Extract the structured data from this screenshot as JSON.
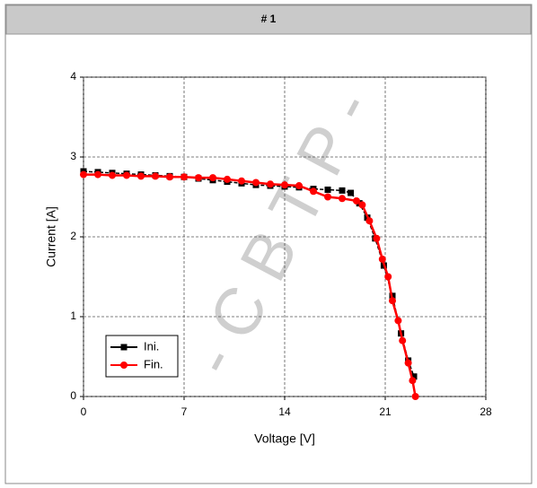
{
  "chart_data": {
    "type": "line",
    "title": "# 1",
    "watermark": "- C B T P -",
    "x_label": "Voltage [V]",
    "y_label": "Current [A]",
    "xlim": [
      0,
      28
    ],
    "xticks": [
      0,
      7,
      14,
      21,
      28
    ],
    "ylim": [
      0,
      4
    ],
    "yticks": [
      0,
      1,
      2,
      3,
      4
    ],
    "grid": true,
    "legend": "lower left",
    "series": [
      {
        "name": "Ini.",
        "color": "#000000",
        "marker": "square",
        "x": [
          0,
          1,
          2,
          3,
          4,
          5,
          6,
          7,
          8,
          9,
          10,
          11,
          12,
          13,
          14,
          15,
          16,
          17,
          18,
          18.6,
          19.2,
          19.75,
          20.3,
          20.9,
          21.5,
          22.1,
          22.6,
          23.0
        ],
        "values": [
          2.82,
          2.81,
          2.8,
          2.79,
          2.78,
          2.77,
          2.76,
          2.75,
          2.73,
          2.71,
          2.69,
          2.67,
          2.65,
          2.64,
          2.63,
          2.62,
          2.6,
          2.59,
          2.58,
          2.55,
          2.42,
          2.24,
          1.98,
          1.64,
          1.26,
          0.79,
          0.45,
          0.25
        ]
      },
      {
        "name": "Fin.",
        "color": "#ff0000",
        "marker": "circle",
        "x": [
          0,
          1,
          2,
          3,
          4,
          5,
          6,
          7,
          8,
          9,
          10,
          11,
          12,
          13,
          14,
          15,
          16,
          17,
          18,
          19,
          19.4,
          19.9,
          20.4,
          20.8,
          21.2,
          21.5,
          21.9,
          22.2,
          22.6,
          22.9,
          23.1
        ],
        "values": [
          2.78,
          2.78,
          2.77,
          2.77,
          2.76,
          2.76,
          2.75,
          2.75,
          2.74,
          2.74,
          2.72,
          2.7,
          2.68,
          2.66,
          2.65,
          2.64,
          2.57,
          2.5,
          2.48,
          2.45,
          2.4,
          2.2,
          1.98,
          1.72,
          1.5,
          1.2,
          0.95,
          0.7,
          0.42,
          0.2,
          0
        ]
      }
    ]
  }
}
